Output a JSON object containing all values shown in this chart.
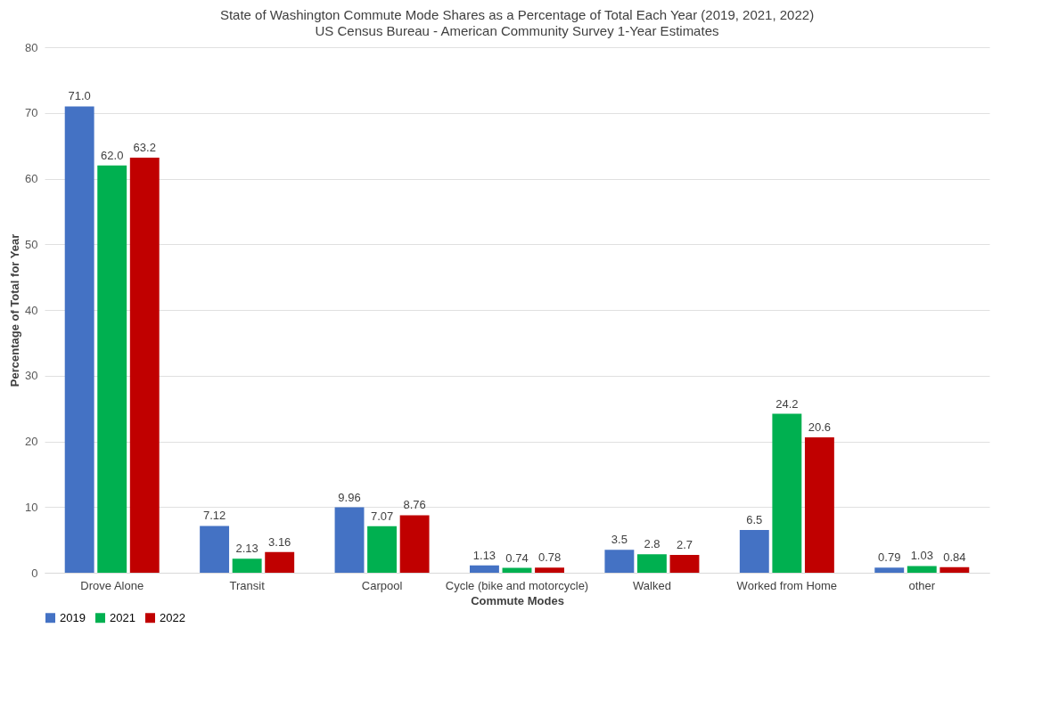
{
  "chart_data": {
    "type": "bar",
    "title": "State of Washington      Commute Mode Shares as a Percentage of Total Each Year      (2019, 2021, 2022)",
    "subtitle": "US Census Bureau - American Community Survey 1-Year Estimates",
    "xlabel": "Commute Modes",
    "ylabel": "Percentage of Total for Year",
    "categories": [
      "Drove Alone",
      "Transit",
      "Carpool",
      "Cycle (bike and motorcycle)",
      "Walked",
      "Worked from Home",
      "other"
    ],
    "series": [
      {
        "name": "2019",
        "color": "#4472c4",
        "values": [
          71.0,
          7.12,
          9.96,
          1.13,
          3.5,
          6.5,
          0.79
        ],
        "value_labels": [
          "71.0",
          "7.12",
          "9.96",
          "1.13",
          "3.5",
          "6.5",
          "0.79"
        ]
      },
      {
        "name": "2021",
        "color": "#00b050",
        "values": [
          62.0,
          2.13,
          7.07,
          0.74,
          2.8,
          24.2,
          1.03
        ],
        "value_labels": [
          "62.0",
          "2.13",
          "7.07",
          "0.74",
          "2.8",
          "24.2",
          "1.03"
        ]
      },
      {
        "name": "2022",
        "color": "#c00000",
        "values": [
          63.2,
          3.16,
          8.76,
          0.78,
          2.7,
          20.6,
          0.84
        ],
        "value_labels": [
          "63.2",
          "3.16",
          "8.76",
          "0.78",
          "2.7",
          "20.6",
          "0.84"
        ]
      }
    ],
    "ylim": [
      0,
      80
    ],
    "yticks": [
      0,
      10,
      20,
      30,
      40,
      50,
      60,
      70,
      80
    ],
    "grid": "y",
    "legend": "bottom"
  }
}
